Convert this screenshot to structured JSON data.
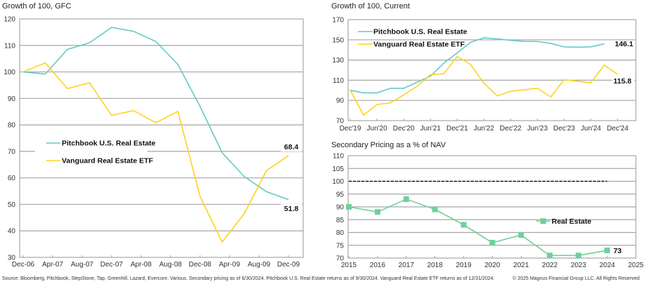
{
  "colors": {
    "pitchbook": "#66C9C6",
    "vanguard": "#FFD21F",
    "real_estate": "#6FD09A",
    "grid": "#A6A6A6",
    "frame": "#A6A6A6",
    "par_line": "#000000"
  },
  "footer": {
    "source": "Source: Bloomberg, Pitchbook, StepStone, Tap, Greenhill, Lazard, Evercore, Various. Secondary pricing as of 6/30/2024. Pitchbook U.S. Real Estate returns as of 9/30/2024. Vanguard Real Estate ETF returns as of 12/31/2024.",
    "copyright": "© 2025 Magnus Financial Group LLC. All Rights Reserved"
  },
  "chart_data": [
    {
      "id": "gfc",
      "type": "line",
      "title": "Growth of 100, GFC",
      "xlabel": "",
      "ylabel": "",
      "ylim": [
        30,
        120
      ],
      "yticks": [
        30,
        40,
        50,
        60,
        70,
        80,
        90,
        100,
        110,
        120
      ],
      "x": [
        "Dec-06",
        "Mar-07",
        "Jun-07",
        "Sep-07",
        "Dec-07",
        "Mar-08",
        "Jun-08",
        "Sep-08",
        "Dec-08",
        "Mar-09",
        "Jun-09",
        "Sep-09",
        "Dec-09"
      ],
      "xtick_labels": [
        "Dec-06",
        "Apr-07",
        "Aug-07",
        "Dec-07",
        "Apr-08",
        "Aug-08",
        "Dec-08",
        "Apr-09",
        "Aug-09",
        "Dec-09"
      ],
      "grid": true,
      "legend_position": "center-left",
      "series": [
        {
          "name": "Pitchbook U.S. Real Estate",
          "color_key": "pitchbook",
          "values": [
            100,
            99.2,
            108.5,
            111,
            116.8,
            115.3,
            111.5,
            102.8,
            87,
            69.5,
            60.5,
            54.8,
            51.8
          ],
          "end_label": "51.8"
        },
        {
          "name": "Vanguard Real Estate ETF",
          "color_key": "vanguard",
          "values": [
            100,
            103.4,
            93.7,
            95.9,
            83.6,
            85.4,
            80.8,
            85.1,
            53,
            35.8,
            46.5,
            62.7,
            68.4
          ],
          "end_label": "68.4"
        }
      ]
    },
    {
      "id": "current",
      "type": "line",
      "title": "Growth of 100, Current",
      "xlabel": "",
      "ylabel": "",
      "ylim": [
        70,
        170
      ],
      "yticks": [
        70,
        90,
        110,
        130,
        150,
        170
      ],
      "x": [
        "Dec'19",
        "Mar'20",
        "Jun'20",
        "Sep'20",
        "Dec'20",
        "Mar'21",
        "Jun'21",
        "Sep'21",
        "Dec'21",
        "Mar'22",
        "Jun'22",
        "Sep'22",
        "Dec'22",
        "Mar'23",
        "Jun'23",
        "Sep'23",
        "Dec'23",
        "Mar'24",
        "Jun'24",
        "Sep'24",
        "Dec'24"
      ],
      "xtick_labels": [
        "Dec'19",
        "Jun'20",
        "Dec'20",
        "Jun'21",
        "Dec'21",
        "Jun'22",
        "Dec'22",
        "Jun'23",
        "Dec'23",
        "Jun'24",
        "Dec'24"
      ],
      "grid": true,
      "legend_position": "top-left",
      "series": [
        {
          "name": "Pitchbook U.S. Real Estate",
          "color_key": "pitchbook",
          "values": [
            100,
            97.5,
            97.5,
            102,
            102,
            108,
            114,
            127,
            137,
            147.5,
            152,
            151,
            149.5,
            148.5,
            148.3,
            146.5,
            143,
            142.7,
            143,
            146.1
          ],
          "end_label": "146.1"
        },
        {
          "name": "Vanguard Real Estate ETF",
          "color_key": "vanguard",
          "values": [
            100,
            75.5,
            86,
            87.5,
            95.5,
            104,
            115.5,
            116.5,
            133.5,
            125.5,
            107,
            94.5,
            99,
            100.5,
            102,
            93.5,
            110.5,
            109,
            107.5,
            125,
            115.8
          ],
          "end_label": "115.8"
        }
      ]
    },
    {
      "id": "secondary",
      "type": "line",
      "title": "Secondary Pricing as a % of NAV",
      "xlabel": "",
      "ylabel": "",
      "ylim": [
        70,
        110
      ],
      "yticks": [
        70,
        75,
        80,
        85,
        90,
        95,
        100,
        105,
        110
      ],
      "xlim": [
        2015,
        2025
      ],
      "xtick_labels": [
        "2015",
        "2016",
        "2017",
        "2018",
        "2019",
        "2020",
        "2021",
        "2022",
        "2023",
        "2024",
        "2025"
      ],
      "grid": true,
      "legend_position": "center-right",
      "reference_line": {
        "value": 100,
        "style": "dashed",
        "from": 2015,
        "to": 2024
      },
      "series": [
        {
          "name": "Real Estate",
          "color_key": "real_estate",
          "marker": "square",
          "x": [
            2015,
            2016,
            2017,
            2018,
            2019,
            2020,
            2021,
            2022,
            2023,
            2024
          ],
          "values": [
            90,
            88,
            93,
            89,
            83,
            76,
            79,
            71,
            71,
            73
          ],
          "end_label": "73"
        }
      ]
    }
  ]
}
